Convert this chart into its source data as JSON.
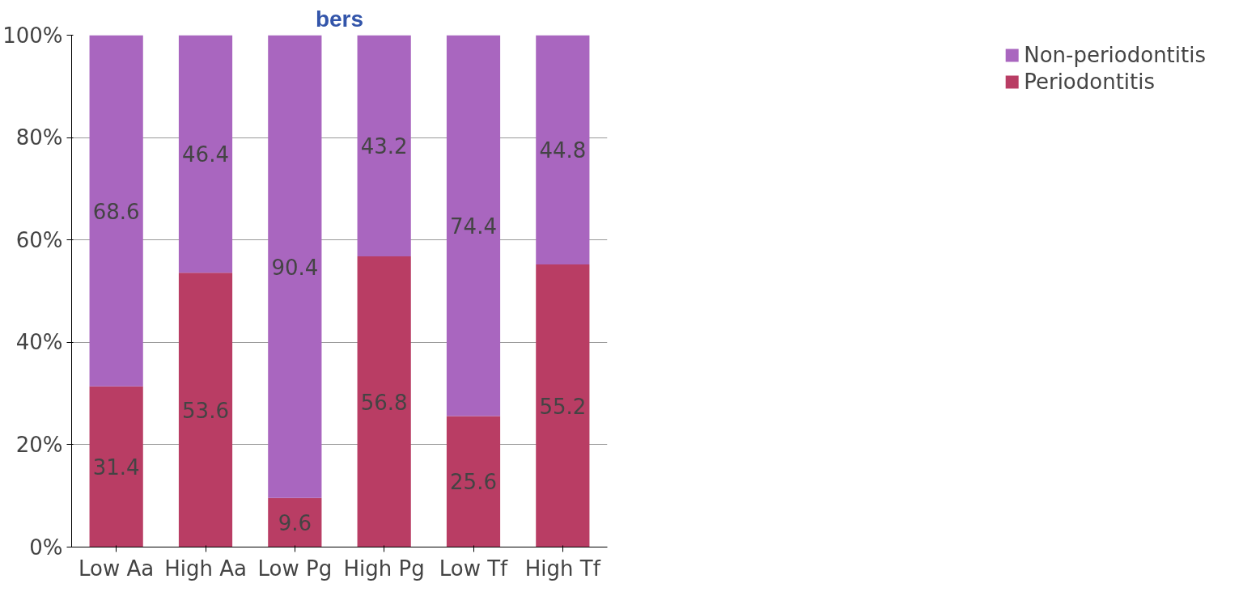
{
  "chart_data": {
    "type": "bar",
    "title": "bers",
    "stacked": true,
    "categories": [
      "Low Aa",
      "High Aa",
      "Low Pg",
      "High Pg",
      "Low Tf",
      "High Tf"
    ],
    "series": [
      {
        "name": "Periodontitis",
        "color": "#b93d64",
        "values": [
          31.4,
          53.6,
          9.6,
          56.8,
          25.6,
          55.2
        ]
      },
      {
        "name": "Non-periodontitis",
        "color": "#a966bf",
        "values": [
          68.6,
          46.4,
          90.4,
          43.2,
          74.4,
          44.8
        ]
      }
    ],
    "ylim": [
      0,
      100
    ],
    "yticks": [
      {
        "value": 0,
        "label": "0%"
      },
      {
        "value": 20,
        "label": "20%"
      },
      {
        "value": 40,
        "label": "40%"
      },
      {
        "value": 60,
        "label": "60%"
      },
      {
        "value": 80,
        "label": "80%"
      },
      {
        "value": 100,
        "label": "100%"
      }
    ],
    "grid": "y",
    "legend": "right",
    "data_labels": true
  }
}
